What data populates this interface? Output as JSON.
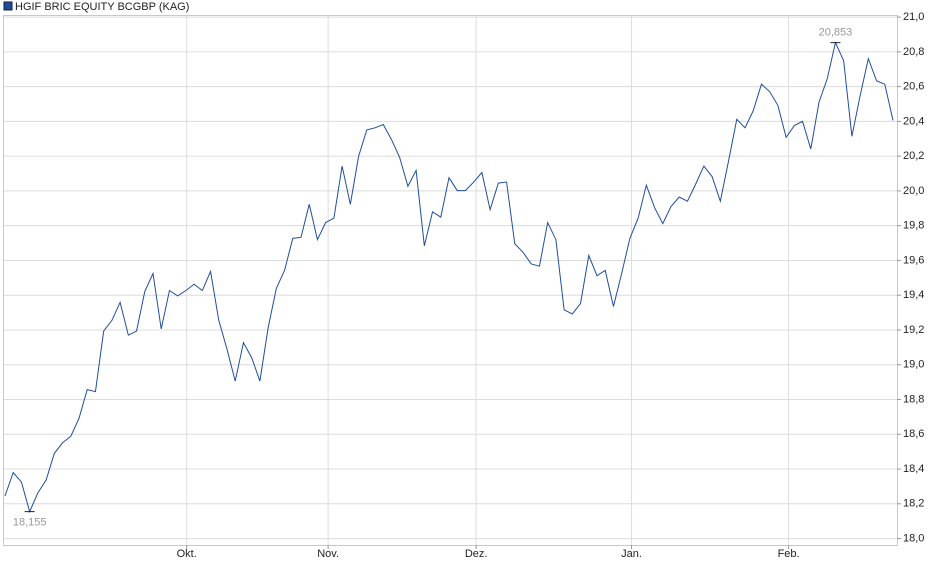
{
  "chart_data": {
    "type": "line",
    "series": [
      {
        "name": "HGIF BRIC EQUITY BCGBP (KAG)",
        "color": "#1f4e9c",
        "values": [
          18.245,
          18.38,
          18.325,
          18.155,
          18.263,
          18.337,
          18.49,
          18.551,
          18.588,
          18.692,
          18.857,
          18.845,
          19.194,
          19.255,
          19.359,
          19.17,
          19.194,
          19.421,
          19.525,
          19.206,
          19.427,
          19.396,
          19.427,
          19.463,
          19.427,
          19.537,
          19.255,
          19.09,
          18.906,
          19.127,
          19.041,
          18.906,
          19.212,
          19.439,
          19.543,
          19.727,
          19.733,
          19.923,
          19.72,
          19.818,
          19.843,
          20.143,
          19.923,
          20.198,
          20.351,
          20.363,
          20.382,
          20.296,
          20.192,
          20.027,
          20.118,
          19.684,
          19.88,
          19.849,
          20.076,
          20.002,
          20.002,
          20.051,
          20.106,
          19.892,
          20.045,
          20.051,
          19.696,
          19.647,
          19.58,
          19.567,
          19.818,
          19.72,
          19.316,
          19.292,
          19.353,
          19.629,
          19.512,
          19.543,
          19.335,
          19.525,
          19.727,
          19.843,
          20.033,
          19.904,
          19.812,
          19.91,
          19.965,
          19.941,
          20.039,
          20.143,
          20.082,
          19.941,
          20.173,
          20.412,
          20.363,
          20.461,
          20.614,
          20.571,
          20.492,
          20.308,
          20.376,
          20.4,
          20.241,
          20.51,
          20.645,
          20.853,
          20.749,
          20.314,
          20.547,
          20.761,
          20.633,
          20.614,
          20.406
        ],
        "value_labels": [
          null,
          null,
          null,
          "18,155",
          null,
          null,
          null,
          null,
          null,
          null,
          null,
          null,
          null,
          null,
          null,
          null,
          null,
          null,
          null,
          null,
          null,
          null,
          null,
          null,
          null,
          null,
          null,
          null,
          null,
          null,
          null,
          null,
          null,
          null,
          null,
          null,
          null,
          null,
          null,
          null,
          null,
          null,
          null,
          null,
          null,
          null,
          null,
          null,
          null,
          null,
          null,
          null,
          null,
          null,
          null,
          null,
          null,
          null,
          null,
          null,
          null,
          null,
          null,
          null,
          null,
          null,
          null,
          null,
          null,
          null,
          null,
          null,
          null,
          null,
          null,
          null,
          null,
          null,
          null,
          null,
          null,
          null,
          null,
          null,
          null,
          null,
          null,
          null,
          null,
          null,
          null,
          null,
          null,
          null,
          null,
          null,
          null,
          null,
          null,
          null,
          null,
          "20,853",
          null,
          null,
          null,
          null,
          null,
          null,
          null
        ]
      }
    ],
    "xlim": [
      0,
      108
    ],
    "xticks": [
      {
        "value": 22.1,
        "label": "Okt."
      },
      {
        "value": 39.3,
        "label": "Nov."
      },
      {
        "value": 57.3,
        "label": "Dez."
      },
      {
        "value": 76.2,
        "label": "Jan."
      },
      {
        "value": 95.3,
        "label": "Feb."
      }
    ],
    "ylim": [
      17.963,
      21.012
    ],
    "yticks": [
      {
        "value": 18.0,
        "label": "18,0"
      },
      {
        "value": 18.2,
        "label": "18,2"
      },
      {
        "value": 18.4,
        "label": "18,4"
      },
      {
        "value": 18.6,
        "label": "18,6"
      },
      {
        "value": 18.8,
        "label": "18,8"
      },
      {
        "value": 19.0,
        "label": "19,0"
      },
      {
        "value": 19.2,
        "label": "19,2"
      },
      {
        "value": 19.4,
        "label": "19,4"
      },
      {
        "value": 19.6,
        "label": "19,6"
      },
      {
        "value": 19.8,
        "label": "19,8"
      },
      {
        "value": 20.0,
        "label": "20,0"
      },
      {
        "value": 20.2,
        "label": "20,2"
      },
      {
        "value": 20.4,
        "label": "20,4"
      },
      {
        "value": 20.6,
        "label": "20,6"
      },
      {
        "value": 20.8,
        "label": "20,8"
      },
      {
        "value": 21.0,
        "label": "21,0"
      }
    ],
    "grid": true
  }
}
